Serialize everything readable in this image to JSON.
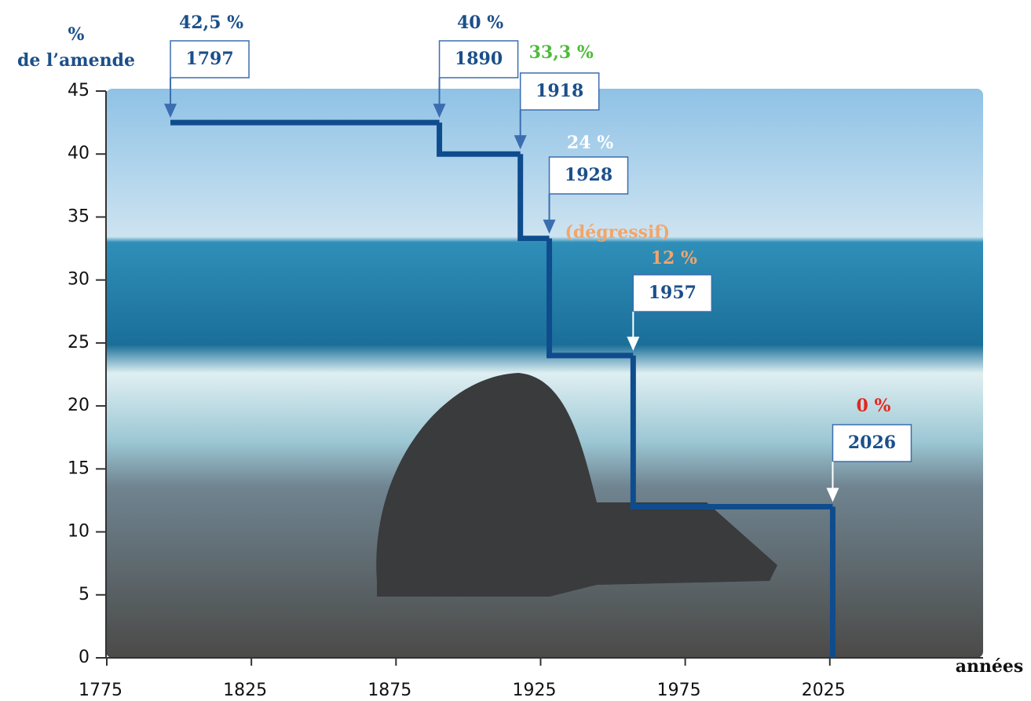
{
  "chart_data": {
    "type": "step",
    "y_label_lines": [
      "%",
      "de l’amende"
    ],
    "x_label": "années",
    "annotation": "(dégressif)",
    "x": [
      1797,
      1890,
      1918,
      1928,
      1957,
      2026
    ],
    "values": [
      42.5,
      40,
      33.3,
      24,
      12,
      0
    ],
    "value_labels": [
      "42,5 %",
      "40 %",
      "33,3 %",
      "24 %",
      "12 %",
      "0 %"
    ],
    "label_colors": [
      "#1b4f8a",
      "#1b4f8a",
      "#4dbb3a",
      "#ffffff",
      "#f2a56a",
      "#e0281f"
    ],
    "color": "#0f4c8e",
    "xlim": [
      1775,
      2078
    ],
    "ylim": [
      0,
      45
    ],
    "xticks": [
      1775,
      1825,
      1875,
      1925,
      1975,
      2025
    ],
    "yticks": [
      0,
      5,
      10,
      15,
      20,
      25,
      30,
      35,
      40,
      45
    ]
  }
}
